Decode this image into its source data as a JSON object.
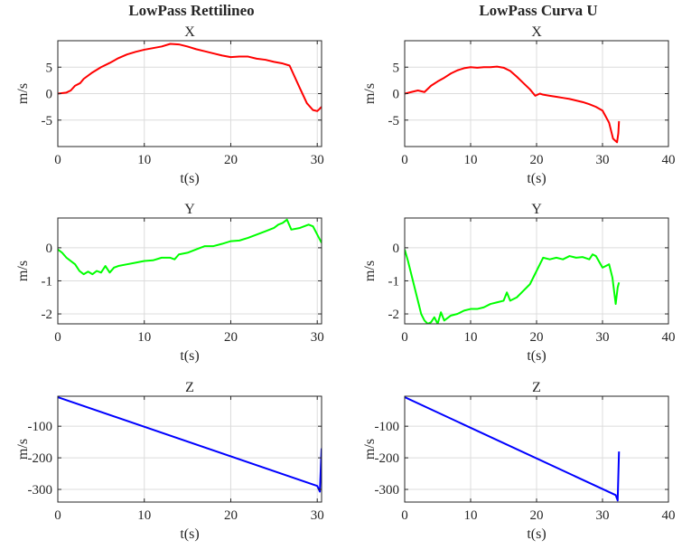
{
  "figure": {
    "column_titles": [
      "LowPass Rettilineo",
      "LowPass Curva U"
    ]
  },
  "chart_data": [
    {
      "type": "line",
      "title": "X",
      "xlabel": "t(s)",
      "ylabel": "m/s",
      "xlim": [
        0,
        30.5
      ],
      "ylim": [
        -10,
        10
      ],
      "grid": true,
      "xticks": [
        0,
        10,
        20,
        30
      ],
      "yticks": [
        -5,
        0,
        5
      ],
      "series": [
        {
          "color": "#ff0000",
          "points": [
            [
              0,
              0
            ],
            [
              1,
              0.2
            ],
            [
              1.5,
              0.6
            ],
            [
              2,
              1.5
            ],
            [
              2.6,
              2
            ],
            [
              3,
              2.8
            ],
            [
              4,
              4
            ],
            [
              5,
              5
            ],
            [
              6,
              5.8
            ],
            [
              7,
              6.7
            ],
            [
              8,
              7.4
            ],
            [
              9,
              7.9
            ],
            [
              10,
              8.3
            ],
            [
              11,
              8.6
            ],
            [
              12,
              8.9
            ],
            [
              13,
              9.4
            ],
            [
              14,
              9.3
            ],
            [
              15,
              8.9
            ],
            [
              16,
              8.4
            ],
            [
              17,
              8
            ],
            [
              18,
              7.6
            ],
            [
              19,
              7.2
            ],
            [
              20,
              6.9
            ],
            [
              21,
              7
            ],
            [
              22,
              7
            ],
            [
              23,
              6.6
            ],
            [
              24,
              6.4
            ],
            [
              25,
              6
            ],
            [
              26,
              5.7
            ],
            [
              26.8,
              5.3
            ],
            [
              27.3,
              3.5
            ],
            [
              28,
              1
            ],
            [
              28.8,
              -1.8
            ],
            [
              29.5,
              -3.1
            ],
            [
              30,
              -3.3
            ],
            [
              30.2,
              -3
            ],
            [
              30.5,
              -2.5
            ]
          ]
        }
      ]
    },
    {
      "type": "line",
      "title": "X",
      "xlabel": "t(s)",
      "ylabel": "m/s",
      "xlim": [
        0,
        40
      ],
      "ylim": [
        -10,
        10
      ],
      "grid": true,
      "xticks": [
        0,
        10,
        20,
        30,
        40
      ],
      "yticks": [
        -5,
        0,
        5
      ],
      "series": [
        {
          "color": "#ff0000",
          "points": [
            [
              0,
              0
            ],
            [
              1,
              0.3
            ],
            [
              2,
              0.6
            ],
            [
              3,
              0.3
            ],
            [
              4,
              1.5
            ],
            [
              5,
              2.3
            ],
            [
              6,
              3
            ],
            [
              7,
              3.8
            ],
            [
              8,
              4.4
            ],
            [
              9,
              4.8
            ],
            [
              10,
              5
            ],
            [
              11,
              4.9
            ],
            [
              12,
              5
            ],
            [
              13,
              5
            ],
            [
              14,
              5.1
            ],
            [
              15,
              4.9
            ],
            [
              16,
              4.3
            ],
            [
              17,
              3.2
            ],
            [
              18,
              2
            ],
            [
              19,
              0.8
            ],
            [
              19.8,
              -0.4
            ],
            [
              20.5,
              0
            ],
            [
              21,
              -0.2
            ],
            [
              22,
              -0.4
            ],
            [
              23,
              -0.6
            ],
            [
              24,
              -0.8
            ],
            [
              25,
              -1
            ],
            [
              26,
              -1.3
            ],
            [
              27,
              -1.6
            ],
            [
              28,
              -2
            ],
            [
              29,
              -2.5
            ],
            [
              30,
              -3.2
            ],
            [
              31,
              -5.5
            ],
            [
              31.6,
              -8.5
            ],
            [
              32.2,
              -9.2
            ],
            [
              32.4,
              -7.5
            ],
            [
              32.5,
              -5.2
            ]
          ]
        }
      ]
    },
    {
      "type": "line",
      "title": "Y",
      "xlabel": "t(s)",
      "ylabel": "m/s",
      "xlim": [
        0,
        30.5
      ],
      "ylim": [
        -2.3,
        0.9
      ],
      "grid": true,
      "xticks": [
        0,
        10,
        20,
        30
      ],
      "yticks": [
        -2,
        -1,
        0
      ],
      "series": [
        {
          "color": "#00ff00",
          "points": [
            [
              0,
              -0.05
            ],
            [
              0.5,
              -0.15
            ],
            [
              1,
              -0.3
            ],
            [
              2,
              -0.5
            ],
            [
              2.5,
              -0.7
            ],
            [
              3,
              -0.8
            ],
            [
              3.5,
              -0.72
            ],
            [
              4,
              -0.8
            ],
            [
              4.5,
              -0.7
            ],
            [
              5,
              -0.75
            ],
            [
              5.5,
              -0.55
            ],
            [
              6,
              -0.75
            ],
            [
              6.5,
              -0.6
            ],
            [
              7,
              -0.55
            ],
            [
              8,
              -0.5
            ],
            [
              9,
              -0.45
            ],
            [
              10,
              -0.4
            ],
            [
              11,
              -0.38
            ],
            [
              12,
              -0.3
            ],
            [
              13,
              -0.3
            ],
            [
              13.5,
              -0.35
            ],
            [
              14,
              -0.2
            ],
            [
              15,
              -0.15
            ],
            [
              16,
              -0.05
            ],
            [
              17,
              0.05
            ],
            [
              18,
              0.05
            ],
            [
              19,
              0.12
            ],
            [
              20,
              0.2
            ],
            [
              21,
              0.22
            ],
            [
              22,
              0.3
            ],
            [
              23,
              0.4
            ],
            [
              24,
              0.5
            ],
            [
              25,
              0.6
            ],
            [
              25.5,
              0.7
            ],
            [
              26,
              0.75
            ],
            [
              26.5,
              0.85
            ],
            [
              27,
              0.55
            ],
            [
              28,
              0.6
            ],
            [
              29,
              0.7
            ],
            [
              29.5,
              0.65
            ],
            [
              30,
              0.4
            ],
            [
              30.5,
              0.15
            ]
          ]
        }
      ]
    },
    {
      "type": "line",
      "title": "Y",
      "xlabel": "t(s)",
      "ylabel": "m/s",
      "xlim": [
        0,
        40
      ],
      "ylim": [
        -2.3,
        0.9
      ],
      "grid": true,
      "xticks": [
        0,
        10,
        20,
        30,
        40
      ],
      "yticks": [
        -2,
        -1,
        0
      ],
      "series": [
        {
          "color": "#00ff00",
          "points": [
            [
              0,
              -0.05
            ],
            [
              0.5,
              -0.4
            ],
            [
              1,
              -0.8
            ],
            [
              1.5,
              -1.2
            ],
            [
              2,
              -1.6
            ],
            [
              2.5,
              -2
            ],
            [
              3,
              -2.2
            ],
            [
              3.5,
              -2.3
            ],
            [
              4,
              -2.25
            ],
            [
              4.5,
              -2.1
            ],
            [
              5,
              -2.3
            ],
            [
              5.5,
              -1.95
            ],
            [
              6,
              -2.2
            ],
            [
              7,
              -2.05
            ],
            [
              8,
              -2
            ],
            [
              9,
              -1.9
            ],
            [
              10,
              -1.85
            ],
            [
              11,
              -1.85
            ],
            [
              12,
              -1.8
            ],
            [
              13,
              -1.7
            ],
            [
              14,
              -1.65
            ],
            [
              15,
              -1.6
            ],
            [
              15.5,
              -1.35
            ],
            [
              16,
              -1.6
            ],
            [
              17,
              -1.5
            ],
            [
              18,
              -1.3
            ],
            [
              19,
              -1.1
            ],
            [
              20,
              -0.7
            ],
            [
              20.5,
              -0.5
            ],
            [
              21,
              -0.3
            ],
            [
              22,
              -0.35
            ],
            [
              23,
              -0.3
            ],
            [
              24,
              -0.35
            ],
            [
              25,
              -0.25
            ],
            [
              26,
              -0.3
            ],
            [
              27,
              -0.28
            ],
            [
              28,
              -0.35
            ],
            [
              28.5,
              -0.2
            ],
            [
              29,
              -0.25
            ],
            [
              30,
              -0.6
            ],
            [
              31,
              -0.5
            ],
            [
              31.5,
              -0.9
            ],
            [
              32,
              -1.7
            ],
            [
              32.3,
              -1.2
            ],
            [
              32.5,
              -1.05
            ]
          ]
        }
      ]
    },
    {
      "type": "line",
      "title": "Z",
      "xlabel": "t(s)",
      "ylabel": "m/s",
      "xlim": [
        0,
        30.5
      ],
      "ylim": [
        -340,
        -5
      ],
      "grid": true,
      "xticks": [
        0,
        10,
        20,
        30
      ],
      "yticks": [
        -300,
        -200,
        -100
      ],
      "series": [
        {
          "color": "#0000ff",
          "points": [
            [
              0,
              -8
            ],
            [
              30,
              -289
            ],
            [
              30.3,
              -307
            ],
            [
              30.5,
              -170
            ]
          ]
        }
      ]
    },
    {
      "type": "line",
      "title": "Z",
      "xlabel": "t(s)",
      "ylabel": "m/s",
      "xlim": [
        0,
        40
      ],
      "ylim": [
        -340,
        -5
      ],
      "grid": true,
      "xticks": [
        0,
        10,
        20,
        30,
        40
      ],
      "yticks": [
        -300,
        -200,
        -100
      ],
      "series": [
        {
          "color": "#0000ff",
          "points": [
            [
              0,
              -8
            ],
            [
              32,
              -318
            ],
            [
              32.3,
              -335
            ],
            [
              32.5,
              -180
            ]
          ]
        }
      ]
    }
  ]
}
